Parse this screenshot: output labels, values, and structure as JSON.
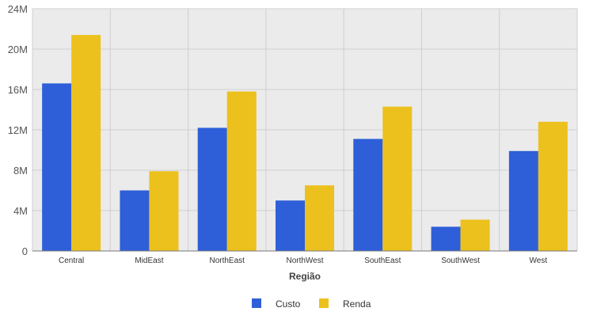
{
  "chart_data": {
    "type": "bar",
    "categories": [
      "Central",
      "MidEast",
      "NorthEast",
      "NorthWest",
      "SouthEast",
      "SouthWest",
      "West"
    ],
    "series": [
      {
        "name": "Custo",
        "color": "#2e5fd8",
        "values": [
          16.6,
          6.0,
          12.2,
          5.0,
          11.1,
          2.4,
          9.9
        ]
      },
      {
        "name": "Renda",
        "color": "#ecc11d",
        "values": [
          21.4,
          7.9,
          15.8,
          6.5,
          14.3,
          3.1,
          12.8
        ]
      }
    ],
    "xlabel": "Região",
    "ylabel": "",
    "ylim": [
      0,
      24
    ],
    "yticks": [
      "0",
      "4M",
      "8M",
      "12M",
      "16M",
      "20M",
      "24M"
    ],
    "grid": true,
    "legend_position": "bottom",
    "plot_background": "#ebebeb",
    "grid_color": "#cfcfd4"
  }
}
